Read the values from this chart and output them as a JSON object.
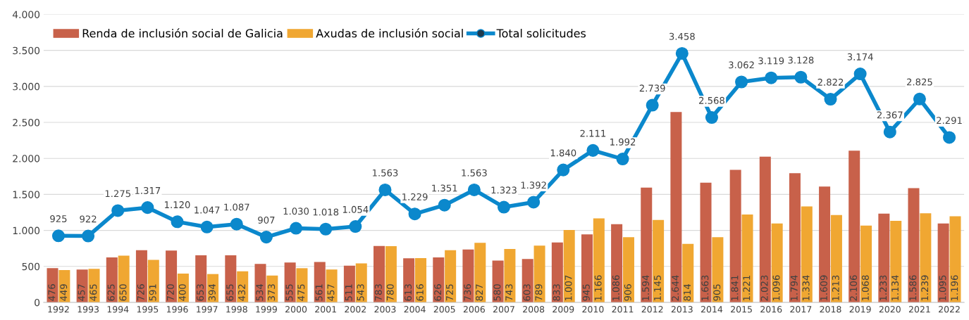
{
  "chart_data": {
    "type": "bar",
    "categories": [
      "1992",
      "1993",
      "1994",
      "1995",
      "1996",
      "1997",
      "1998",
      "1999",
      "2000",
      "2001",
      "2002",
      "2003",
      "2004",
      "2005",
      "2006",
      "2007",
      "2008",
      "2009",
      "2010",
      "2011",
      "2012",
      "2013",
      "2014",
      "2015",
      "2016",
      "2017",
      "2018",
      "2019",
      "2020",
      "2021",
      "2022"
    ],
    "series": [
      {
        "name": "Renda de inclusión social de Galicia",
        "color": "#c8614a",
        "values": [
          476,
          457,
          625,
          726,
          720,
          653,
          655,
          534,
          555,
          561,
          511,
          783,
          613,
          626,
          736,
          580,
          603,
          833,
          945,
          1086,
          1594,
          2644,
          1663,
          1841,
          2023,
          1794,
          1609,
          2106,
          1233,
          1586,
          1095
        ],
        "value_labels": [
          "476",
          "457",
          "625",
          "726",
          "720",
          "653",
          "655",
          "534",
          "555",
          "561",
          "511",
          "783",
          "613",
          "626",
          "736",
          "580",
          "603",
          "833",
          "945",
          "1.086",
          "1.594",
          "2.644",
          "1.663",
          "1.841",
          "2.023",
          "1.794",
          "1.609",
          "2.106",
          "1.233",
          "1.586",
          "1.095"
        ]
      },
      {
        "name": "Axudas de inclusión social",
        "color": "#f0a732",
        "values": [
          449,
          465,
          650,
          591,
          400,
          394,
          432,
          373,
          475,
          457,
          543,
          780,
          616,
          725,
          827,
          743,
          789,
          1007,
          1166,
          906,
          1145,
          814,
          905,
          1221,
          1096,
          1334,
          1213,
          1068,
          1134,
          1239,
          1196
        ],
        "value_labels": [
          "449",
          "465",
          "650",
          "591",
          "400",
          "394",
          "432",
          "373",
          "475",
          "457",
          "543",
          "780",
          "616",
          "725",
          "827",
          "743",
          "789",
          "1.007",
          "1.166",
          "906",
          "1.145",
          "814",
          "905",
          "1.221",
          "1.096",
          "1.334",
          "1.213",
          "1.068",
          "1.134",
          "1.239",
          "1.196"
        ]
      },
      {
        "name": "Total solicitudes",
        "type": "line",
        "color": "#0b88cc",
        "marker": "circle",
        "values": [
          925,
          922,
          1275,
          1317,
          1120,
          1047,
          1087,
          907,
          1030,
          1018,
          1054,
          1563,
          1229,
          1351,
          1563,
          1323,
          1392,
          1840,
          2111,
          1992,
          2739,
          3458,
          2568,
          3062,
          3119,
          3128,
          2822,
          3174,
          2367,
          2825,
          2291
        ],
        "value_labels": [
          "925",
          "922",
          "1.275",
          "1.317",
          "1.120",
          "1.047",
          "1.087",
          "907",
          "1.030",
          "1.018",
          "1.054",
          "1.563",
          "1.229",
          "1.351",
          "1.563",
          "1.323",
          "1.392",
          "1.840",
          "2.111",
          "1.992",
          "2.739",
          "3.458",
          "2.568",
          "3.062",
          "3.119",
          "3.128",
          "2.822",
          "3.174",
          "2.367",
          "2.825",
          "2.291"
        ]
      }
    ],
    "ylim": [
      0,
      4000
    ],
    "yticks": [
      {
        "value": 0,
        "label": "0"
      },
      {
        "value": 500,
        "label": "500"
      },
      {
        "value": 1000,
        "label": "1.000"
      },
      {
        "value": 1500,
        "label": "1.500"
      },
      {
        "value": 2000,
        "label": "2.000"
      },
      {
        "value": 2500,
        "label": "2.500"
      },
      {
        "value": 3000,
        "label": "3.000"
      },
      {
        "value": 3500,
        "label": "3.500"
      },
      {
        "value": 4000,
        "label": "4.000"
      }
    ],
    "grid": "y",
    "legend": "top left"
  }
}
